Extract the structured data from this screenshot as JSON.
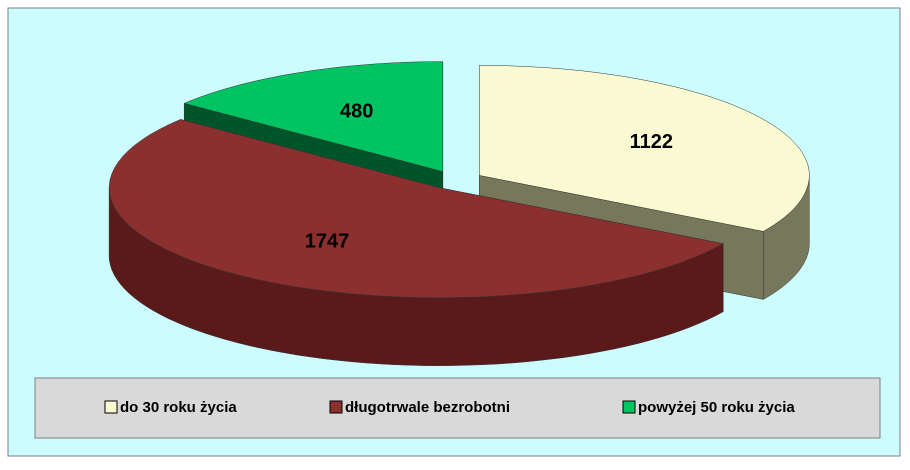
{
  "chart_data": {
    "type": "pie",
    "categories": [
      "do 30 roku życia",
      "długotrwale bezrobotni",
      "powyżej 50 roku życia"
    ],
    "values": [
      1122,
      1747,
      480
    ],
    "colors": [
      "#fafad2",
      "#8b2f2f",
      "#00c462"
    ],
    "side_colors": [
      "#77775c",
      "#5a1a1a",
      "#00542a"
    ],
    "legend": "bottom"
  }
}
